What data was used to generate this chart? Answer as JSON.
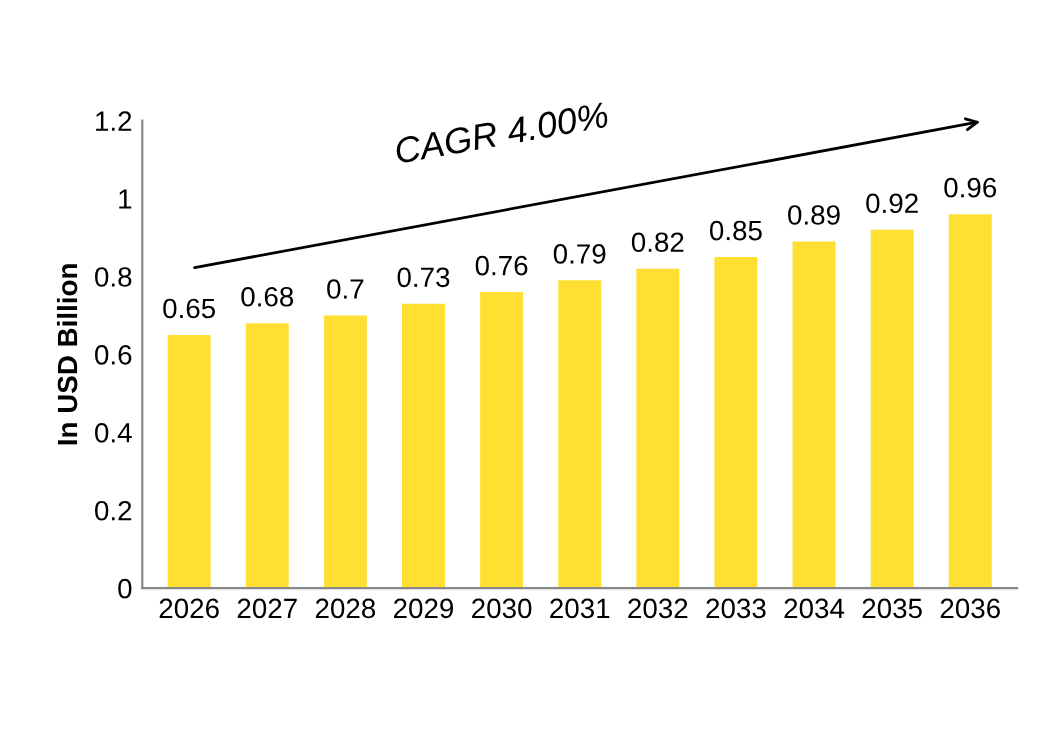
{
  "chart_data": {
    "type": "bar",
    "ylabel": "In USD Billion",
    "categories": [
      "2026",
      "2027",
      "2028",
      "2029",
      "2030",
      "2031",
      "2032",
      "2033",
      "2034",
      "2035",
      "2036"
    ],
    "values": [
      0.65,
      0.68,
      0.7,
      0.73,
      0.76,
      0.79,
      0.82,
      0.85,
      0.89,
      0.92,
      0.96
    ],
    "color": "#ffe032",
    "ylim": [
      0,
      1.2
    ],
    "yticks": [
      0,
      0.2,
      0.4,
      0.6,
      0.8,
      1,
      1.2
    ],
    "data_labels": true,
    "annotations": [
      "CAGR 4.00%"
    ]
  }
}
